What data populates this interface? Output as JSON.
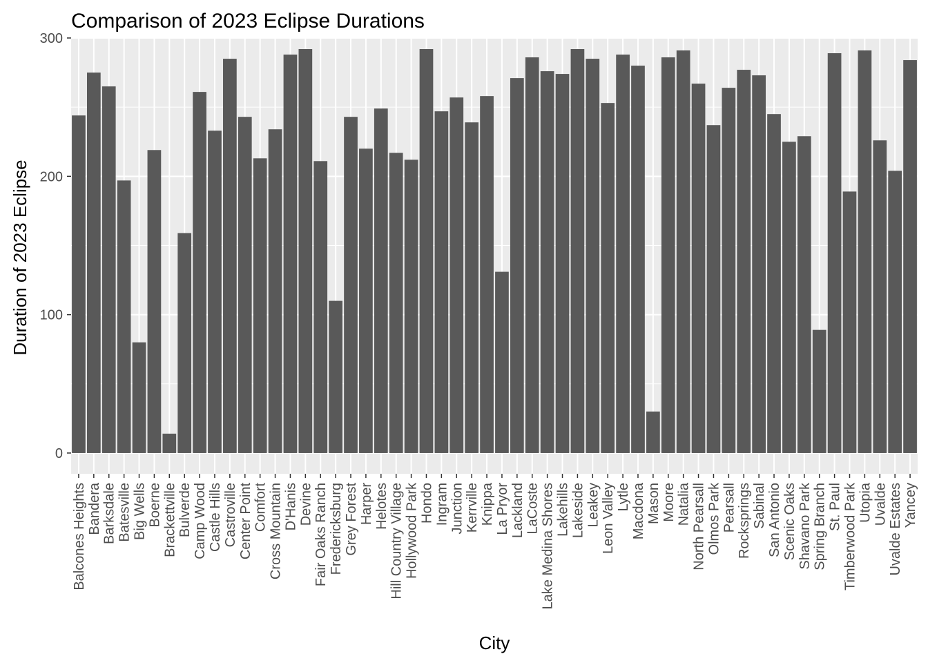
{
  "chart_data": {
    "type": "bar",
    "title": "Comparison of 2023 Eclipse Durations",
    "xlabel": "City",
    "ylabel": "Duration of 2023 Eclipse",
    "ylim": [
      -15,
      300
    ],
    "yticks": [
      0,
      100,
      200,
      300
    ],
    "grid": true,
    "colors": {
      "bar": "#595959",
      "panel": "#ebebeb",
      "gridline": "#ffffff",
      "tick_text": "#4d4d4d",
      "tick_mark": "#333333"
    },
    "categories": [
      "Balcones Heights",
      "Bandera",
      "Barksdale",
      "Batesville",
      "Big Wells",
      "Boerne",
      "Brackettville",
      "Bulverde",
      "Camp Wood",
      "Castle Hills",
      "Castroville",
      "Center Point",
      "Comfort",
      "Cross Mountain",
      "D'Hanis",
      "Devine",
      "Fair Oaks Ranch",
      "Fredericksburg",
      "Grey Forest",
      "Harper",
      "Helotes",
      "Hill Country Village",
      "Hollywood Park",
      "Hondo",
      "Ingram",
      "Junction",
      "Kerrville",
      "Knippa",
      "La Pryor",
      "Lackland",
      "LaCoste",
      "Lake Medina Shores",
      "Lakehills",
      "Lakeside",
      "Leakey",
      "Leon Valley",
      "Lytle",
      "Macdona",
      "Mason",
      "Moore",
      "Natalia",
      "North Pearsall",
      "Olmos Park",
      "Pearsall",
      "Rocksprings",
      "Sabinal",
      "San Antonio",
      "Scenic Oaks",
      "Shavano Park",
      "Spring Branch",
      "St. Paul",
      "Timberwood Park",
      "Utopia",
      "Uvalde",
      "Uvalde Estates",
      "Yancey"
    ],
    "values": [
      244,
      275,
      265,
      197,
      80,
      219,
      14,
      159,
      261,
      233,
      285,
      243,
      213,
      234,
      288,
      292,
      211,
      110,
      243,
      220,
      249,
      217,
      212,
      292,
      247,
      257,
      239,
      258,
      131,
      271,
      286,
      276,
      274,
      292,
      285,
      253,
      288,
      280,
      30,
      286,
      291,
      267,
      237,
      264,
      277,
      273,
      245,
      225,
      229,
      89,
      289,
      189,
      291,
      226,
      204,
      284
    ]
  }
}
